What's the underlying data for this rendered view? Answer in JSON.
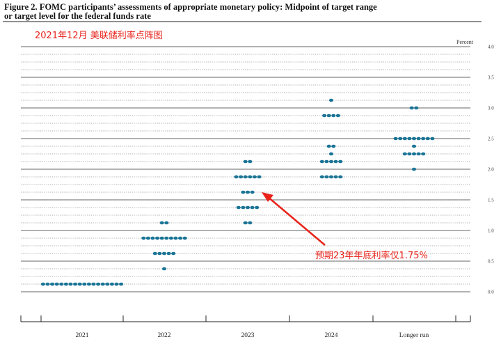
{
  "caption": {
    "line1": "Figure 2.  FOMC participants’ assessments of appropriate monetary policy:  Midpoint of target range",
    "line2": "or target level for the federal funds rate"
  },
  "overlay_title": "2021年12月 美联储利率点阵图",
  "annotation": "预期23年年底利率仅1.75%",
  "colors": {
    "dot": "#1a7496",
    "annotation": "#e8231a",
    "major_line": "#333333",
    "dotted_line": "#555555"
  },
  "chart_data": {
    "type": "scatter",
    "title": "Midpoint of target range or target level for the federal funds rate",
    "ylabel": "Percent",
    "ylim": [
      0,
      4.0
    ],
    "yticks": [
      "0.0",
      "0.5",
      "1.0",
      "1.5",
      "2.0",
      "2.5",
      "3.0",
      "3.5",
      "4.0"
    ],
    "categories": [
      "2021",
      "2022",
      "2023",
      "2024",
      "Longer run"
    ],
    "grid": "dotted every 0.125, solid every 0.5",
    "dots": [
      {
        "category": "2021",
        "levels": [
          {
            "rate": 0.125,
            "count": 18
          }
        ]
      },
      {
        "category": "2022",
        "levels": [
          {
            "rate": 0.375,
            "count": 1
          },
          {
            "rate": 0.625,
            "count": 5
          },
          {
            "rate": 0.875,
            "count": 10
          },
          {
            "rate": 1.125,
            "count": 2
          }
        ]
      },
      {
        "category": "2023",
        "levels": [
          {
            "rate": 1.125,
            "count": 2
          },
          {
            "rate": 1.375,
            "count": 5
          },
          {
            "rate": 1.625,
            "count": 3
          },
          {
            "rate": 1.875,
            "count": 6
          },
          {
            "rate": 2.125,
            "count": 2
          }
        ]
      },
      {
        "category": "2024",
        "levels": [
          {
            "rate": 1.875,
            "count": 5
          },
          {
            "rate": 2.125,
            "count": 5
          },
          {
            "rate": 2.25,
            "count": 1
          },
          {
            "rate": 2.375,
            "count": 2
          },
          {
            "rate": 2.875,
            "count": 4
          },
          {
            "rate": 3.125,
            "count": 1
          }
        ]
      },
      {
        "category": "Longer run",
        "levels": [
          {
            "rate": 2.0,
            "count": 1
          },
          {
            "rate": 2.25,
            "count": 5
          },
          {
            "rate": 2.375,
            "count": 1
          },
          {
            "rate": 2.5,
            "count": 9
          },
          {
            "rate": 3.0,
            "count": 2
          }
        ]
      }
    ]
  }
}
